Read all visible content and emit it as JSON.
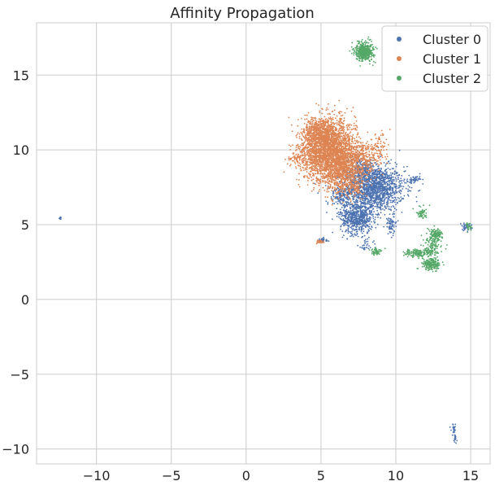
{
  "chart_data": {
    "type": "scatter",
    "title": "Affinity Propagation",
    "xlabel": "",
    "ylabel": "",
    "xlim": [
      -14.0,
      16.3
    ],
    "ylim": [
      -11.0,
      18.5
    ],
    "xticks": [
      -10,
      -5,
      0,
      5,
      10,
      15
    ],
    "yticks": [
      -10,
      -5,
      0,
      5,
      10,
      15
    ],
    "xtick_labels": [
      "−10",
      "−5",
      "0",
      "5",
      "10",
      "15"
    ],
    "ytick_labels": [
      "−10",
      "−5",
      "0",
      "5",
      "10",
      "15"
    ],
    "grid": true,
    "legend_position": "top-right",
    "series": [
      {
        "name": "Cluster 0",
        "color": "#4c72b0",
        "regions": [
          {
            "cx": 8.6,
            "cy": 7.4,
            "sx": 1.0,
            "sy": 0.75,
            "n": 1300
          },
          {
            "cx": 7.4,
            "cy": 5.5,
            "sx": 0.55,
            "sy": 0.55,
            "n": 650
          },
          {
            "cx": 7.9,
            "cy": 8.4,
            "sx": 0.7,
            "sy": 0.6,
            "n": 350
          },
          {
            "cx": 6.4,
            "cy": 6.9,
            "sx": 0.5,
            "sy": 0.45,
            "n": 150
          },
          {
            "cx": 11.2,
            "cy": 8.0,
            "sx": 0.2,
            "sy": 0.12,
            "n": 50
          },
          {
            "cx": 9.7,
            "cy": 5.0,
            "sx": 0.2,
            "sy": 0.35,
            "n": 70
          },
          {
            "cx": 14.7,
            "cy": 4.85,
            "sx": 0.18,
            "sy": 0.12,
            "n": 40
          },
          {
            "cx": -12.4,
            "cy": 5.45,
            "sx": 0.04,
            "sy": 0.04,
            "n": 8
          },
          {
            "cx": 13.9,
            "cy": -8.7,
            "sx": 0.1,
            "sy": 0.2,
            "n": 25
          },
          {
            "cx": 13.95,
            "cy": -9.3,
            "sx": 0.06,
            "sy": 0.25,
            "n": 15
          },
          {
            "cx": 5.1,
            "cy": 3.95,
            "sx": 0.25,
            "sy": 0.08,
            "n": 30
          },
          {
            "cx": 8.0,
            "cy": 3.6,
            "sx": 0.25,
            "sy": 0.2,
            "n": 30
          }
        ]
      },
      {
        "name": "Cluster 1",
        "color": "#dd8452",
        "regions": [
          {
            "cx": 5.6,
            "cy": 10.0,
            "sx": 0.85,
            "sy": 1.0,
            "n": 2300
          },
          {
            "cx": 6.3,
            "cy": 8.8,
            "sx": 0.8,
            "sy": 0.7,
            "n": 800
          },
          {
            "cx": 4.9,
            "cy": 11.2,
            "sx": 0.5,
            "sy": 0.5,
            "n": 400
          },
          {
            "cx": 7.8,
            "cy": 9.6,
            "sx": 0.5,
            "sy": 0.6,
            "n": 250
          },
          {
            "cx": 4.2,
            "cy": 9.5,
            "sx": 0.4,
            "sy": 0.6,
            "n": 200
          },
          {
            "cx": 8.9,
            "cy": 10.2,
            "sx": 0.25,
            "sy": 0.6,
            "n": 80
          },
          {
            "cx": 3.2,
            "cy": 9.4,
            "sx": 0.3,
            "sy": 0.15,
            "n": 40
          },
          {
            "cx": 5.0,
            "cy": 3.85,
            "sx": 0.15,
            "sy": 0.05,
            "n": 25
          },
          {
            "cx": 7.1,
            "cy": 7.6,
            "sx": 0.4,
            "sy": 0.4,
            "n": 120
          }
        ]
      },
      {
        "name": "Cluster 2",
        "color": "#55a868",
        "regions": [
          {
            "cx": 7.9,
            "cy": 16.6,
            "sx": 0.3,
            "sy": 0.3,
            "n": 500
          },
          {
            "cx": 12.4,
            "cy": 2.35,
            "sx": 0.3,
            "sy": 0.18,
            "n": 200
          },
          {
            "cx": 12.5,
            "cy": 3.6,
            "sx": 0.3,
            "sy": 0.6,
            "n": 160
          },
          {
            "cx": 11.5,
            "cy": 3.1,
            "sx": 0.5,
            "sy": 0.15,
            "n": 150
          },
          {
            "cx": 12.7,
            "cy": 4.3,
            "sx": 0.2,
            "sy": 0.15,
            "n": 90
          },
          {
            "cx": 11.7,
            "cy": 5.8,
            "sx": 0.2,
            "sy": 0.2,
            "n": 50
          },
          {
            "cx": 8.7,
            "cy": 3.2,
            "sx": 0.18,
            "sy": 0.12,
            "n": 50
          },
          {
            "cx": 14.85,
            "cy": 4.8,
            "sx": 0.12,
            "sy": 0.15,
            "n": 25
          }
        ]
      }
    ]
  }
}
